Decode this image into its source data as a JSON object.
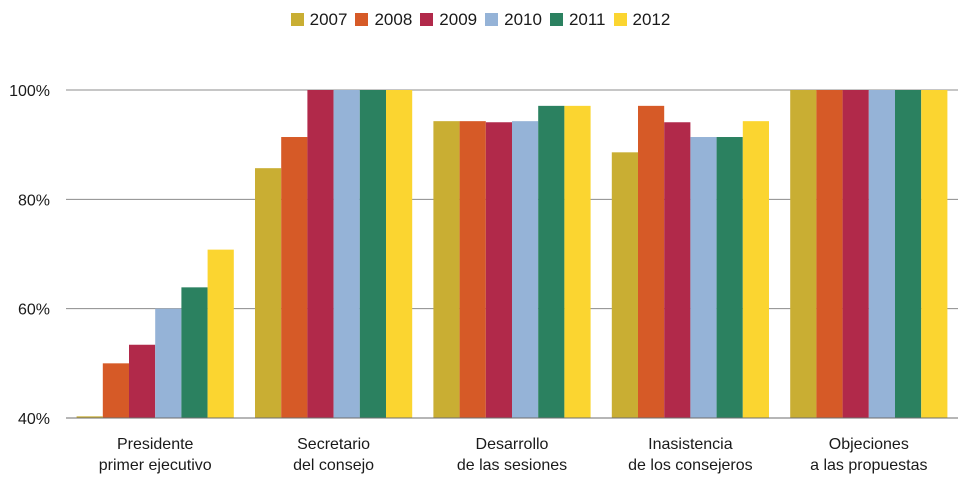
{
  "chart_data": {
    "type": "bar",
    "categories": [
      [
        "Presidente",
        "primer ejecutivo"
      ],
      [
        "Secretario",
        "del consejo"
      ],
      [
        "Desarrollo",
        "de las sesiones"
      ],
      [
        "Inasistencia",
        "de los consejeros"
      ],
      [
        "Objeciones",
        "a las propuestas"
      ]
    ],
    "series": [
      {
        "name": "2007",
        "color": "#C9AE33",
        "values": [
          40.3,
          85.7,
          94.3,
          88.6,
          100
        ]
      },
      {
        "name": "2008",
        "color": "#D65A27",
        "values": [
          50,
          91.4,
          94.3,
          97.1,
          100
        ]
      },
      {
        "name": "2009",
        "color": "#B1294A",
        "values": [
          53.4,
          100,
          94.1,
          94.1,
          100
        ]
      },
      {
        "name": "2010",
        "color": "#95B3D7",
        "values": [
          60,
          100,
          94.3,
          91.4,
          100
        ]
      },
      {
        "name": "2011",
        "color": "#2B8160",
        "values": [
          63.9,
          100,
          97.1,
          91.4,
          100
        ]
      },
      {
        "name": "2012",
        "color": "#FBD530",
        "values": [
          70.8,
          100,
          97.1,
          94.3,
          100
        ]
      }
    ],
    "ylim": [
      40,
      100
    ],
    "yticks": [
      "40%",
      "60%",
      "80%",
      "100%"
    ],
    "ytick_values": [
      40,
      60,
      80,
      100
    ],
    "grid": true,
    "legend_position": "top-center",
    "title": "",
    "xlabel": "",
    "ylabel": ""
  }
}
